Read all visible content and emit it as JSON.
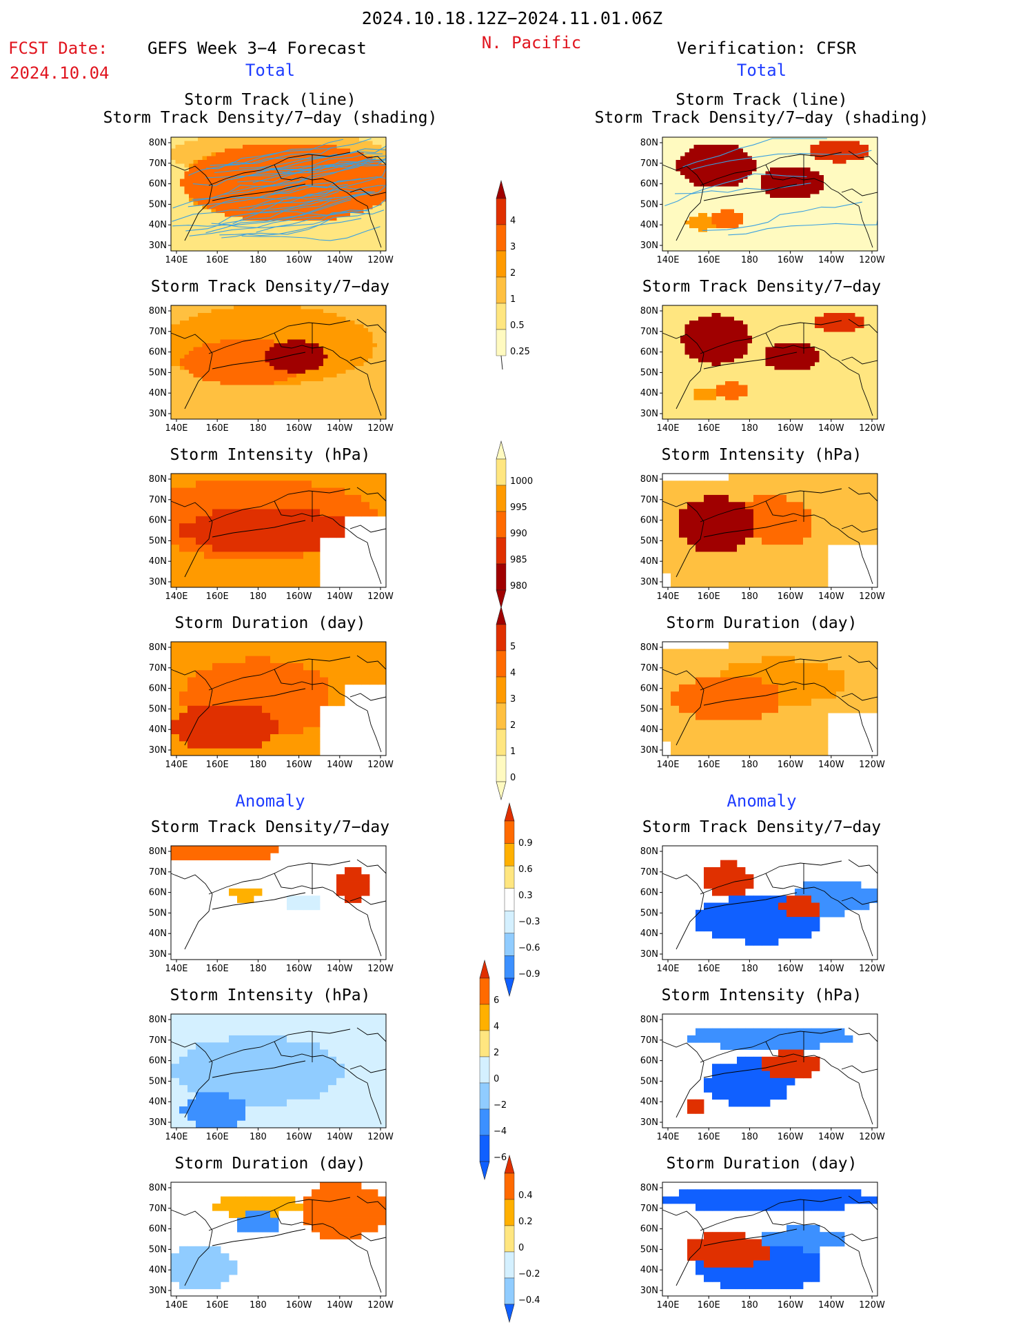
{
  "header": {
    "date_range": "2024.10.18.12Z−2024.11.01.06Z",
    "fcst_label": "FCST Date:",
    "fcst_date": "2024.10.04",
    "forecast_title": "GEFS Week 3−4 Forecast",
    "region": "N. Pacific",
    "verification_title": "Verification: CFSR",
    "left_section_total": "Total",
    "right_section_total": "Total",
    "left_section_anomaly": "Anomaly",
    "right_section_anomaly": "Anomaly"
  },
  "colors": {
    "header_red": "#e0141e",
    "section_blue": "#1e3cff",
    "seq": [
      "#fffac0",
      "#ffe680",
      "#ffc040",
      "#ff9a00",
      "#ff6a00",
      "#e03000",
      "#a00000"
    ],
    "div": [
      "#1060ff",
      "#3c90ff",
      "#90ccff",
      "#d4f0ff",
      "#ffffff",
      "#ffe680",
      "#ffb000",
      "#ff6a00",
      "#e03000"
    ],
    "track_line": "#3aa0e0",
    "coast": "#000000"
  },
  "panel_titles": {
    "track_line_1": "Storm Track (line)",
    "track_line_2": "Storm Track Density/7−day (shading)",
    "density": "Storm Track Density/7−day",
    "intensity": "Storm Intensity (hPa)",
    "duration": "Storm Duration (day)"
  },
  "chart_data": {
    "type": "heatmap",
    "map_axes": {
      "lon_labels": [
        "140E",
        "160E",
        "180",
        "160W",
        "140W",
        "120W"
      ],
      "lat_labels": [
        "80N",
        "70N",
        "60N",
        "50N",
        "40N",
        "30N"
      ],
      "lon_range": [
        "140E",
        "120W"
      ],
      "lat_range": [
        "25N",
        "82N"
      ]
    },
    "colorbars": [
      {
        "name": "density_total",
        "labels": [
          "4",
          "3",
          "2",
          "1",
          "0.5",
          "0.25"
        ]
      },
      {
        "name": "intensity_total",
        "labels": [
          "1000",
          "995",
          "990",
          "985",
          "980"
        ]
      },
      {
        "name": "duration_total",
        "labels": [
          "5",
          "4",
          "3",
          "2",
          "1",
          "0"
        ]
      },
      {
        "name": "density_anom",
        "labels": [
          "0.9",
          "0.6",
          "0.3",
          "−0.3",
          "−0.6",
          "−0.9"
        ]
      },
      {
        "name": "intensity_anom",
        "labels": [
          "6",
          "4",
          "2",
          "0",
          "−2",
          "−4",
          "−6"
        ]
      },
      {
        "name": "duration_anom",
        "labels": [
          "0.4",
          "0.2",
          "0",
          "−0.2",
          "−0.4"
        ]
      }
    ],
    "panels": [
      {
        "id": "gefs-track-total",
        "column": "GEFS",
        "scale": "seq",
        "blobs": [
          [
            0.55,
            0.4,
            0.5,
            0.35,
            4
          ],
          [
            0.35,
            0.4,
            0.3,
            0.3,
            3
          ],
          [
            0.5,
            0.15,
            0.5,
            0.2,
            2
          ],
          [
            0.25,
            0.7,
            0.3,
            0.35,
            1
          ]
        ],
        "floor": 1,
        "tracks": 38
      },
      {
        "id": "cfsr-track-total",
        "column": "CFSR",
        "scale": "seq",
        "blobs": [
          [
            0.25,
            0.25,
            0.18,
            0.2,
            6
          ],
          [
            0.6,
            0.4,
            0.15,
            0.15,
            6
          ],
          [
            0.82,
            0.12,
            0.14,
            0.1,
            5
          ],
          [
            0.3,
            0.72,
            0.08,
            0.08,
            4
          ],
          [
            0.18,
            0.75,
            0.07,
            0.07,
            3
          ]
        ],
        "floor": 0,
        "tracks": 6
      },
      {
        "id": "gefs-density-total",
        "column": "GEFS",
        "scale": "seq",
        "blobs": [
          [
            0.58,
            0.45,
            0.14,
            0.14,
            6
          ],
          [
            0.35,
            0.5,
            0.3,
            0.2,
            4
          ],
          [
            0.45,
            0.35,
            0.5,
            0.35,
            3
          ],
          [
            0.3,
            0.8,
            0.25,
            0.3,
            2
          ]
        ],
        "floor": 2,
        "tracks": 0
      },
      {
        "id": "cfsr-density-total",
        "column": "CFSR",
        "scale": "seq",
        "blobs": [
          [
            0.25,
            0.3,
            0.16,
            0.22,
            6
          ],
          [
            0.6,
            0.45,
            0.13,
            0.13,
            6
          ],
          [
            0.82,
            0.15,
            0.12,
            0.08,
            5
          ],
          [
            0.32,
            0.75,
            0.08,
            0.07,
            4
          ],
          [
            0.2,
            0.78,
            0.06,
            0.06,
            3
          ]
        ],
        "floor": 1,
        "tracks": 0
      },
      {
        "id": "gefs-intensity-total",
        "column": "GEFS",
        "scale": "seq",
        "blobs": [
          [
            0.45,
            0.5,
            0.4,
            0.2,
            5
          ],
          [
            0.4,
            0.4,
            0.55,
            0.35,
            4
          ],
          [
            0.3,
            0.2,
            0.7,
            0.3,
            3
          ]
        ],
        "floor": 3,
        "tracks": 0,
        "blocky": true,
        "mask": "se"
      },
      {
        "id": "cfsr-intensity-total",
        "column": "CFSR",
        "scale": "seq",
        "blobs": [
          [
            0.25,
            0.45,
            0.18,
            0.25,
            6
          ],
          [
            0.5,
            0.4,
            0.2,
            0.2,
            4
          ],
          [
            0.6,
            0.55,
            0.08,
            0.08,
            4
          ]
        ],
        "floor": 2,
        "tracks": 0,
        "blocky": true,
        "mask": "sparse"
      },
      {
        "id": "gefs-duration-total",
        "column": "GEFS",
        "scale": "seq",
        "blobs": [
          [
            0.25,
            0.75,
            0.25,
            0.2,
            5
          ],
          [
            0.4,
            0.5,
            0.35,
            0.35,
            4
          ],
          [
            0.5,
            0.3,
            0.6,
            0.4,
            3
          ]
        ],
        "floor": 3,
        "tracks": 0,
        "blocky": true,
        "mask": "se"
      },
      {
        "id": "cfsr-duration-total",
        "column": "CFSR",
        "scale": "seq",
        "blobs": [
          [
            0.3,
            0.5,
            0.25,
            0.2,
            4
          ],
          [
            0.55,
            0.35,
            0.3,
            0.2,
            3
          ],
          [
            0.3,
            0.75,
            0.25,
            0.15,
            2
          ]
        ],
        "floor": 2,
        "tracks": 0,
        "blocky": true,
        "mask": "sparse"
      },
      {
        "id": "gefs-density-anom",
        "column": "GEFS",
        "scale": "div",
        "blobs": [
          [
            0.2,
            0.05,
            0.3,
            0.1,
            7
          ],
          [
            0.85,
            0.35,
            0.08,
            0.15,
            8
          ],
          [
            0.35,
            0.42,
            0.08,
            0.06,
            6
          ],
          [
            0.6,
            0.5,
            0.1,
            0.05,
            3
          ]
        ],
        "floor": 4,
        "tracks": 0,
        "blocky": true,
        "mask": "none"
      },
      {
        "id": "cfsr-density-anom",
        "column": "CFSR",
        "scale": "div",
        "blobs": [
          [
            0.3,
            0.3,
            0.12,
            0.15,
            8
          ],
          [
            0.65,
            0.55,
            0.1,
            0.1,
            8
          ],
          [
            0.45,
            0.65,
            0.3,
            0.2,
            0
          ],
          [
            0.8,
            0.45,
            0.2,
            0.15,
            1
          ]
        ],
        "floor": 4,
        "tracks": 0,
        "blocky": true,
        "mask": "none"
      },
      {
        "id": "gefs-intensity-anom",
        "column": "GEFS",
        "scale": "div",
        "blobs": [
          [
            0.2,
            0.85,
            0.15,
            0.15,
            1
          ],
          [
            0.4,
            0.5,
            0.4,
            0.3,
            2
          ],
          [
            0.6,
            0.15,
            0.2,
            0.1,
            5
          ]
        ],
        "floor": 3,
        "tracks": 0,
        "blocky": true,
        "mask": "none"
      },
      {
        "id": "cfsr-intensity-anom",
        "column": "CFSR",
        "scale": "div",
        "blobs": [
          [
            0.6,
            0.45,
            0.15,
            0.12,
            8
          ],
          [
            0.4,
            0.6,
            0.2,
            0.2,
            0
          ],
          [
            0.5,
            0.2,
            0.4,
            0.1,
            1
          ],
          [
            0.15,
            0.8,
            0.05,
            0.05,
            8
          ]
        ],
        "floor": 4,
        "tracks": 0,
        "blocky": true,
        "mask": "none"
      },
      {
        "id": "gefs-duration-anom",
        "column": "GEFS",
        "scale": "div",
        "blobs": [
          [
            0.8,
            0.25,
            0.2,
            0.25,
            7
          ],
          [
            0.4,
            0.2,
            0.2,
            0.1,
            6
          ],
          [
            0.4,
            0.35,
            0.1,
            0.1,
            1
          ],
          [
            0.15,
            0.75,
            0.15,
            0.2,
            2
          ]
        ],
        "floor": 4,
        "tracks": 0,
        "blocky": true,
        "mask": "none"
      },
      {
        "id": "cfsr-duration-anom",
        "column": "CFSR",
        "scale": "div",
        "blobs": [
          [
            0.5,
            0.15,
            0.5,
            0.1,
            0
          ],
          [
            0.3,
            0.6,
            0.2,
            0.15,
            8
          ],
          [
            0.45,
            0.75,
            0.3,
            0.2,
            0
          ],
          [
            0.65,
            0.5,
            0.2,
            0.1,
            1
          ]
        ],
        "floor": 4,
        "tracks": 0,
        "blocky": true,
        "mask": "sparse"
      }
    ]
  }
}
